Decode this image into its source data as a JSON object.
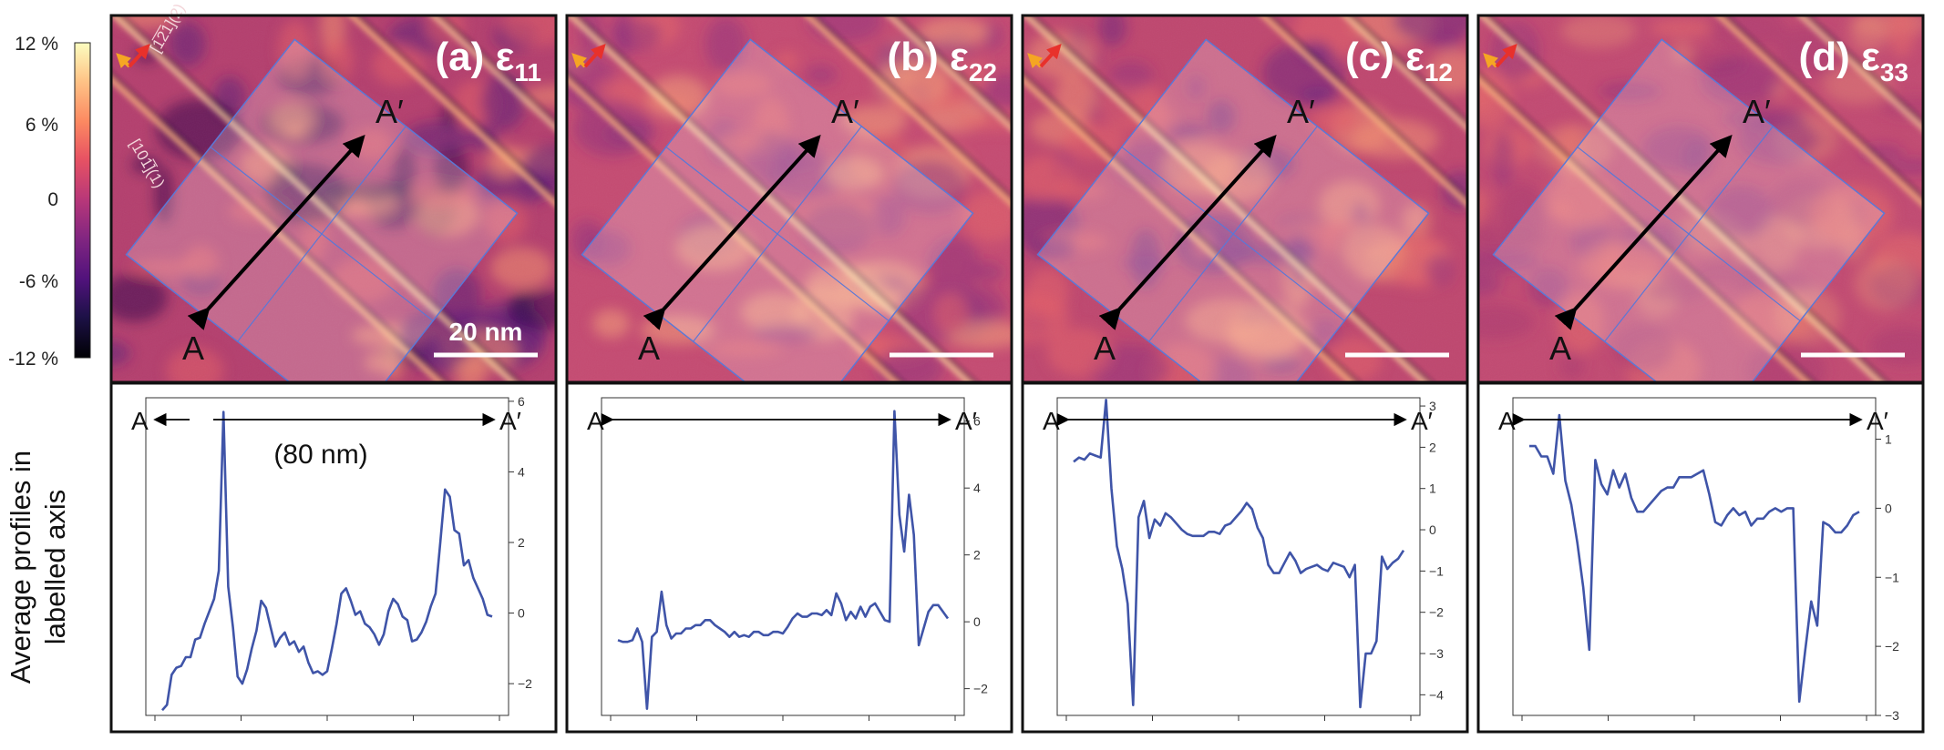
{
  "colorbar": {
    "ticks": [
      "12 %",
      "6 %",
      "0",
      "-6 %",
      "-12 %"
    ],
    "range": [
      -12,
      12
    ],
    "colormap": "magma"
  },
  "ylabel_line1": "Average profiles in",
  "ylabel_line2": "labelled axis",
  "scalebar_label": "20 nm",
  "distance_label": "(80 nm)",
  "crystal_axes": [
    "[1̅2̅1](2)",
    "[101̅](1)"
  ],
  "marker_start": "A",
  "marker_end": "A′",
  "panels": [
    {
      "label": "(a) ε",
      "sub": "11",
      "texture": "a"
    },
    {
      "label": "(b) ε",
      "sub": "22",
      "texture": "b"
    },
    {
      "label": "(c) ε",
      "sub": "12",
      "texture": "c"
    },
    {
      "label": "(d) ε",
      "sub": "33",
      "texture": "d"
    }
  ],
  "chart_data": [
    {
      "type": "line",
      "title": "ε 11",
      "yticks": [
        -2,
        0,
        2,
        4,
        6
      ],
      "ylim": [
        -2.9,
        6.1
      ],
      "x_range_nm": 80,
      "values": [
        -2.75,
        -2.6,
        -1.75,
        -1.55,
        -1.5,
        -1.25,
        -1.25,
        -0.75,
        -0.7,
        -0.3,
        0.05,
        0.4,
        1.2,
        5.7,
        0.75,
        -0.4,
        -1.8,
        -2.0,
        -1.6,
        -1.0,
        -0.5,
        0.35,
        0.15,
        -0.4,
        -0.95,
        -0.7,
        -0.55,
        -0.9,
        -0.8,
        -1.1,
        -0.95,
        -1.4,
        -1.7,
        -1.65,
        -1.75,
        -1.65,
        -1.0,
        -0.3,
        0.55,
        0.7,
        0.35,
        -0.05,
        0.05,
        -0.3,
        -0.4,
        -0.6,
        -0.9,
        -0.6,
        0.05,
        0.4,
        0.25,
        -0.1,
        -0.2,
        -0.8,
        -0.75,
        -0.55,
        -0.25,
        0.2,
        0.55,
        2.0,
        3.5,
        3.3,
        2.35,
        2.25,
        1.35,
        1.5,
        1.0,
        0.7,
        0.4,
        -0.05,
        -0.1
      ]
    },
    {
      "type": "line",
      "title": "ε 22",
      "yticks": [
        -2,
        0,
        2,
        4,
        6
      ],
      "ylim": [
        -2.8,
        6.7
      ],
      "x_range_nm": 80,
      "values": [
        -0.55,
        -0.6,
        -0.6,
        -0.55,
        -0.2,
        -0.6,
        -2.6,
        -0.45,
        -0.3,
        0.9,
        -0.1,
        -0.5,
        -0.35,
        -0.35,
        -0.2,
        -0.2,
        -0.1,
        -0.1,
        0.05,
        0.05,
        -0.1,
        -0.2,
        -0.3,
        -0.45,
        -0.3,
        -0.45,
        -0.4,
        -0.45,
        -0.3,
        -0.3,
        -0.4,
        -0.4,
        -0.3,
        -0.3,
        -0.35,
        -0.15,
        0.1,
        0.25,
        0.15,
        0.15,
        0.25,
        0.25,
        0.2,
        0.35,
        0.2,
        0.85,
        0.55,
        0.05,
        0.3,
        0.1,
        0.45,
        0.15,
        0.45,
        0.55,
        0.3,
        0.05,
        0.0,
        6.3,
        3.2,
        2.1,
        3.8,
        2.6,
        -0.7,
        -0.2,
        0.3,
        0.5,
        0.5,
        0.3,
        0.1
      ]
    },
    {
      "type": "line",
      "title": "ε 12",
      "yticks": [
        -4,
        -3,
        -2,
        -1,
        0,
        1,
        2,
        3
      ],
      "ylim": [
        -4.5,
        3.2
      ],
      "x_range_nm": 80,
      "values": [
        1.65,
        1.75,
        1.7,
        1.85,
        1.8,
        1.75,
        3.15,
        1.0,
        -0.4,
        -0.95,
        -1.8,
        -4.25,
        0.3,
        0.7,
        -0.2,
        0.25,
        0.1,
        0.4,
        0.3,
        0.15,
        0.0,
        -0.1,
        -0.15,
        -0.15,
        -0.15,
        -0.05,
        -0.05,
        -0.1,
        0.1,
        0.15,
        0.3,
        0.45,
        0.65,
        0.5,
        0.05,
        -0.2,
        -0.85,
        -1.05,
        -1.05,
        -0.8,
        -0.55,
        -0.75,
        -1.05,
        -0.95,
        -0.9,
        -0.85,
        -0.95,
        -1.0,
        -0.8,
        -0.85,
        -0.9,
        -1.15,
        -0.85,
        -4.3,
        -3.0,
        -3.0,
        -2.7,
        -0.65,
        -0.95,
        -0.8,
        -0.7,
        -0.5
      ]
    },
    {
      "type": "line",
      "title": "ε 33",
      "yticks": [
        -3,
        -2,
        -1,
        0,
        1
      ],
      "ylim": [
        -3.0,
        1.6
      ],
      "x_range_nm": 80,
      "values": [
        0.9,
        0.9,
        0.75,
        0.75,
        0.5,
        1.35,
        0.4,
        0.05,
        -0.5,
        -1.15,
        -2.05,
        0.7,
        0.35,
        0.2,
        0.55,
        0.3,
        0.5,
        0.15,
        -0.05,
        -0.05,
        0.05,
        0.15,
        0.25,
        0.3,
        0.3,
        0.45,
        0.45,
        0.45,
        0.5,
        0.55,
        0.2,
        -0.2,
        -0.25,
        -0.1,
        0.0,
        -0.1,
        -0.05,
        -0.25,
        -0.15,
        -0.15,
        -0.05,
        0.0,
        -0.05,
        0.0,
        0.0,
        -2.8,
        -2.05,
        -1.35,
        -1.7,
        -0.2,
        -0.25,
        -0.35,
        -0.35,
        -0.25,
        -0.1,
        -0.05
      ]
    }
  ]
}
